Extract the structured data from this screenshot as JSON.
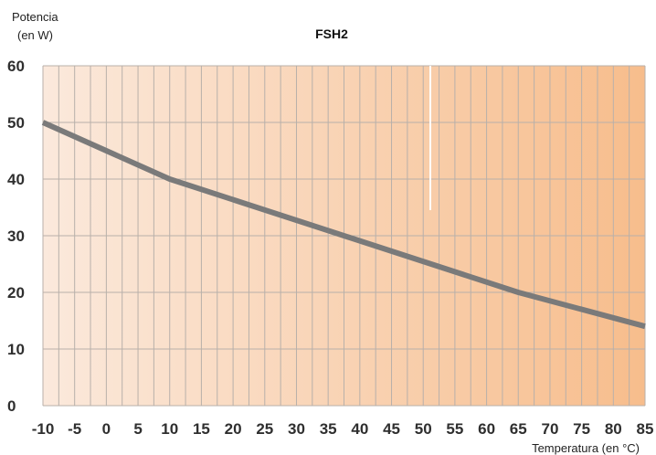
{
  "chart_data": {
    "type": "line",
    "title": "FSH2",
    "ylabel_line1": "Potencia",
    "ylabel_line2": "(en W)",
    "xlabel": "Temperatura (en °C)",
    "xlim": [
      -10,
      85
    ],
    "ylim": [
      0,
      60
    ],
    "x_ticks": [
      -10,
      -5,
      0,
      5,
      10,
      15,
      20,
      25,
      30,
      35,
      40,
      45,
      50,
      55,
      60,
      65,
      70,
      75,
      80,
      85
    ],
    "y_ticks": [
      0,
      10,
      20,
      30,
      40,
      50,
      60
    ],
    "grid": true,
    "series": [
      {
        "x": [
          -10,
          10,
          65,
          85
        ],
        "y": [
          50,
          40,
          20,
          14
        ]
      }
    ],
    "colors": {
      "line": "#7a7a7a",
      "grid": "#b8b0aa",
      "bg_start": "#fbe9dc",
      "bg_end": "#f7bd8c"
    }
  }
}
